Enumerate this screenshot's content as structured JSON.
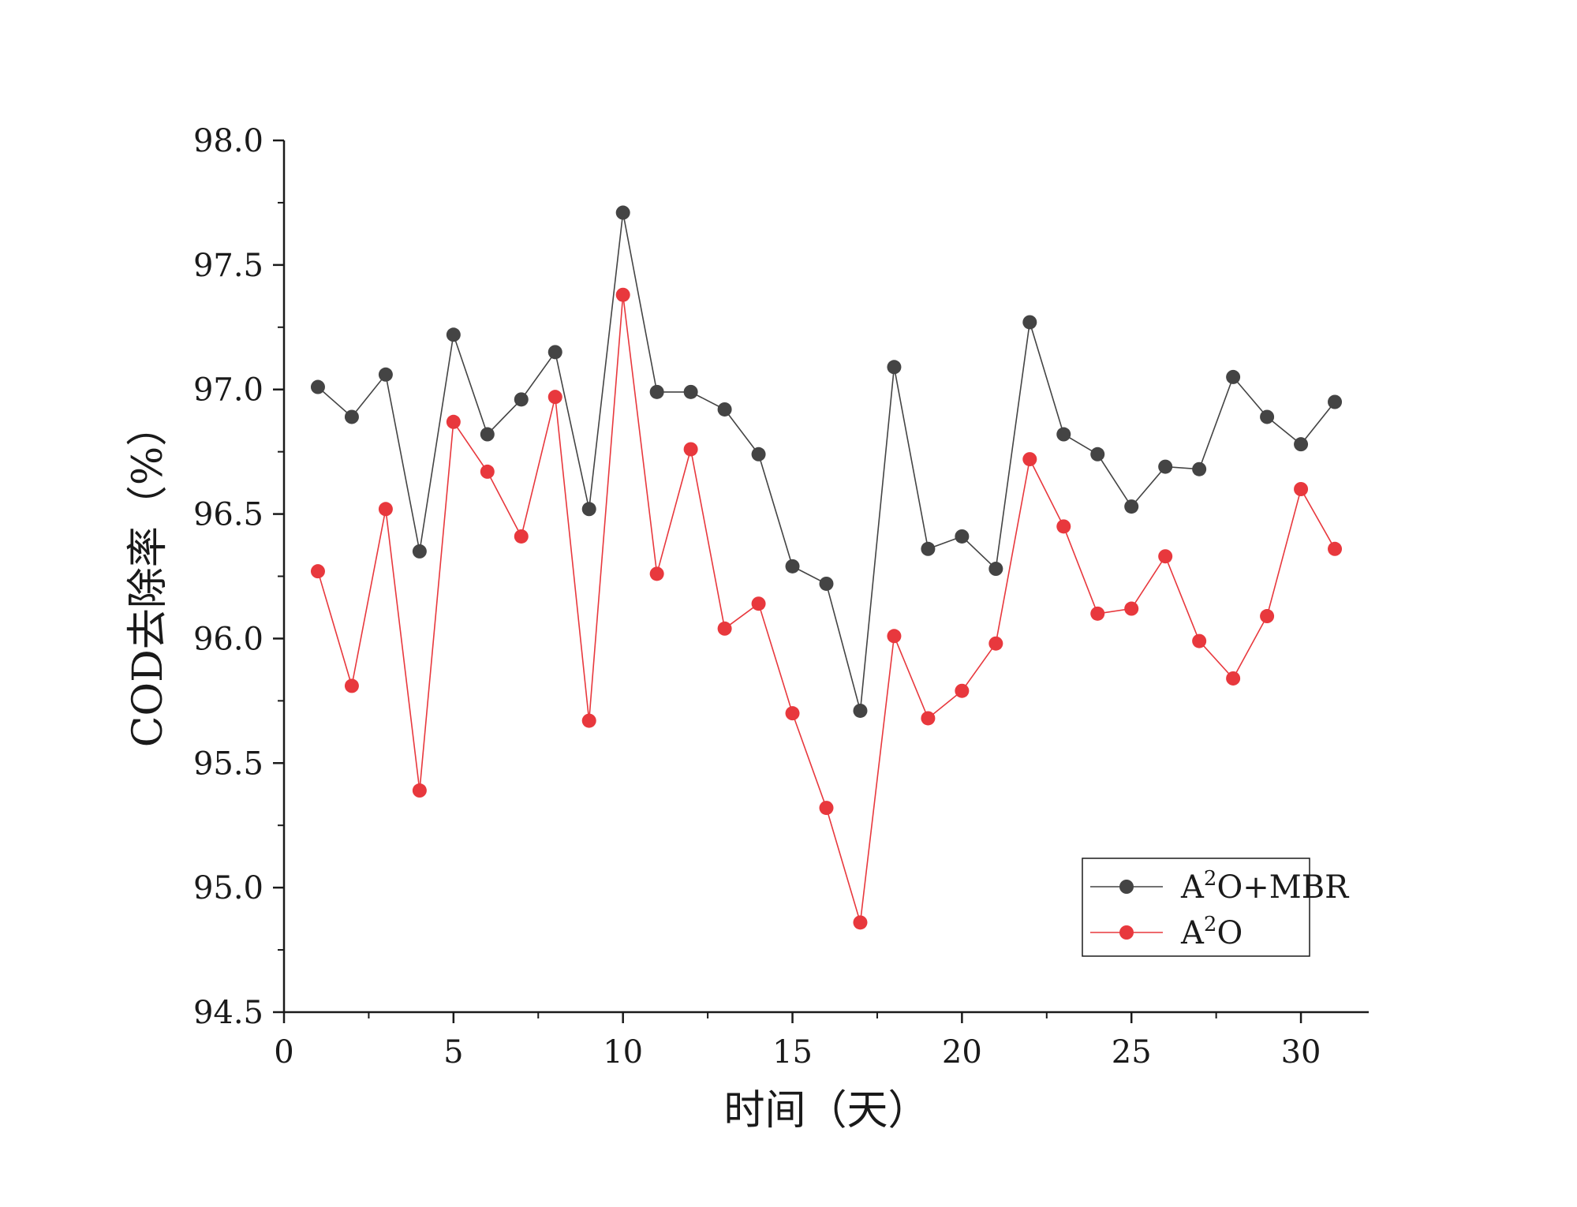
{
  "chart_data": {
    "type": "line",
    "xlabel": "时间（天）",
    "ylabel": "COD去除率（%）",
    "xlim": [
      0,
      32
    ],
    "ylim": [
      94.5,
      98.0
    ],
    "x_ticks": [
      0,
      5,
      10,
      15,
      20,
      25,
      30
    ],
    "x_tick_labels": [
      "0",
      "5",
      "10",
      "15",
      "20",
      "25",
      "30"
    ],
    "y_ticks": [
      94.5,
      95.0,
      95.5,
      96.0,
      96.5,
      97.0,
      97.5,
      98.0
    ],
    "y_tick_labels": [
      "94.5",
      "95.0",
      "95.5",
      "96.0",
      "96.5",
      "97.0",
      "97.5",
      "98.0"
    ],
    "grid": false,
    "legend_position": "bottom-right",
    "x": [
      1,
      2,
      3,
      4,
      5,
      6,
      7,
      8,
      9,
      10,
      11,
      12,
      13,
      14,
      15,
      16,
      17,
      18,
      19,
      20,
      21,
      22,
      23,
      24,
      25,
      26,
      27,
      28,
      29,
      30,
      31
    ],
    "series": [
      {
        "name": "A²O+MBR",
        "legend_base": "A",
        "legend_sup": "2",
        "legend_rest": "O+MBR",
        "color": "#444444",
        "values": [
          97.01,
          96.89,
          97.06,
          96.35,
          97.22,
          96.82,
          96.96,
          97.15,
          96.52,
          97.71,
          96.99,
          96.99,
          96.92,
          96.74,
          96.29,
          96.22,
          95.71,
          97.09,
          96.36,
          96.41,
          96.28,
          97.27,
          96.82,
          96.74,
          96.53,
          96.69,
          96.68,
          97.05,
          96.89,
          96.78,
          96.95
        ]
      },
      {
        "name": "A²O",
        "legend_base": "A",
        "legend_sup": "2",
        "legend_rest": "O",
        "color": "#e8383d",
        "values": [
          96.27,
          95.81,
          96.52,
          95.39,
          96.87,
          96.67,
          96.41,
          96.97,
          95.67,
          97.38,
          96.26,
          96.76,
          96.04,
          96.14,
          95.7,
          95.32,
          94.86,
          96.01,
          95.68,
          95.79,
          95.98,
          96.72,
          96.45,
          96.1,
          96.12,
          96.33,
          95.99,
          95.84,
          96.09,
          96.6,
          96.36
        ]
      }
    ]
  }
}
